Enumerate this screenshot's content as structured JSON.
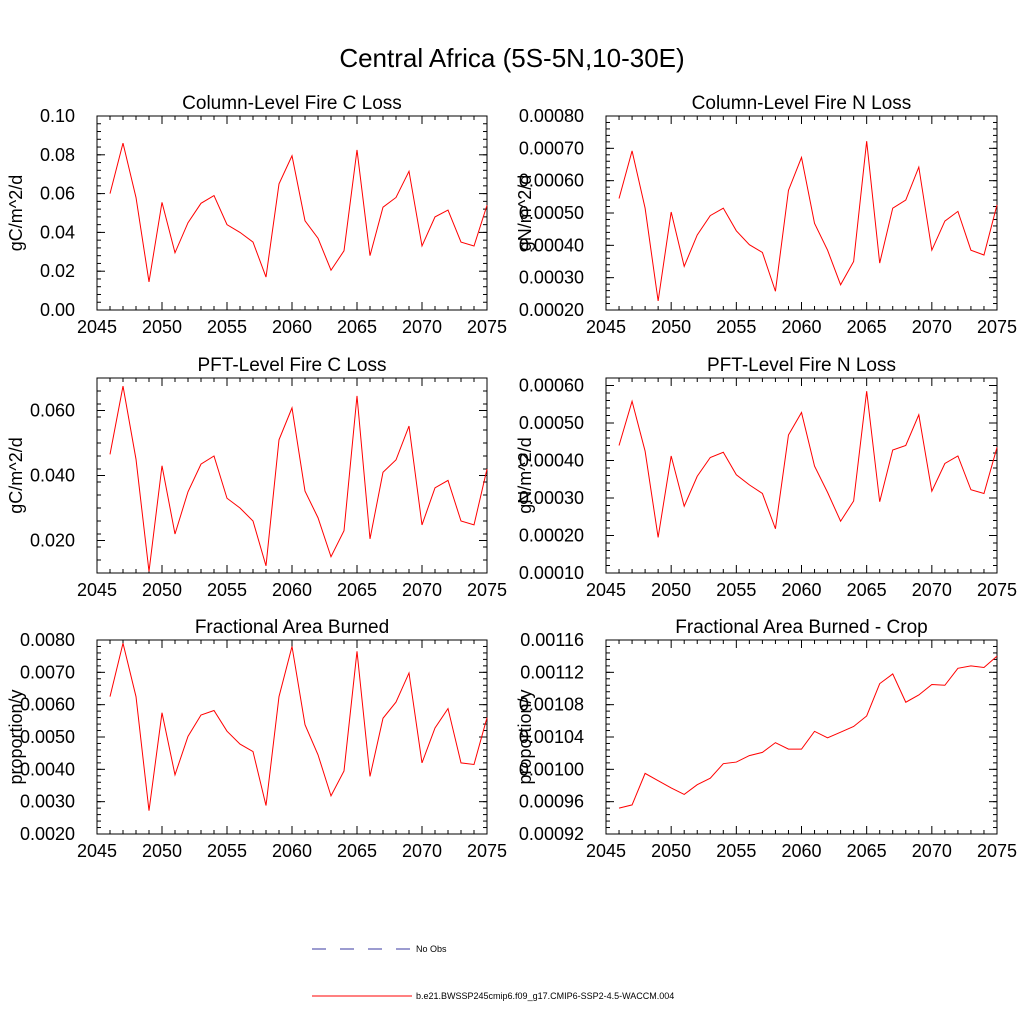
{
  "page": {
    "title": "Central Africa (5S-5N,10-30E)"
  },
  "legend": {
    "entries": [
      {
        "label": "No Obs",
        "color": "#3a3aa0",
        "style": "dashed"
      },
      {
        "label": "b.e21.BWSSP245cmip6.f09_g17.CMIP6-SSP2-4.5-WACCM.004",
        "color": "#ff0000",
        "style": "solid"
      }
    ]
  },
  "chart_data": [
    {
      "type": "line",
      "title": "Column-Level Fire C Loss",
      "ylabel": "gC/m^2/d",
      "xlim": [
        2045,
        2075
      ],
      "ylim": [
        0.0,
        0.1
      ],
      "xticks": [
        2045,
        2050,
        2055,
        2060,
        2065,
        2070,
        2075
      ],
      "yticks": [
        0.0,
        0.02,
        0.04,
        0.06,
        0.08,
        0.1
      ],
      "ytick_labels": [
        "0.00",
        "0.02",
        "0.04",
        "0.06",
        "0.08",
        "0.10"
      ],
      "series": [
        {
          "color": "#ff0000",
          "x": [
            2046,
            2047,
            2048,
            2049,
            2050,
            2051,
            2052,
            2053,
            2054,
            2055,
            2056,
            2057,
            2058,
            2059,
            2060,
            2061,
            2062,
            2063,
            2064,
            2065,
            2066,
            2067,
            2068,
            2069,
            2070,
            2071,
            2072,
            2073,
            2074,
            2075
          ],
          "y": [
            0.06,
            0.086,
            0.058,
            0.0145,
            0.0555,
            0.0295,
            0.045,
            0.055,
            0.059,
            0.044,
            0.04,
            0.035,
            0.017,
            0.065,
            0.0795,
            0.046,
            0.037,
            0.0205,
            0.0305,
            0.0825,
            0.028,
            0.053,
            0.058,
            0.0715,
            0.033,
            0.048,
            0.0515,
            0.035,
            0.033,
            0.054
          ]
        }
      ]
    },
    {
      "type": "line",
      "title": "Column-Level Fire N Loss",
      "ylabel": "gN/m^2/d",
      "xlim": [
        2045,
        2075
      ],
      "ylim": [
        0.0002,
        0.0008
      ],
      "xticks": [
        2045,
        2050,
        2055,
        2060,
        2065,
        2070,
        2075
      ],
      "yticks": [
        0.0002,
        0.0003,
        0.0004,
        0.0005,
        0.0006,
        0.0007,
        0.0008
      ],
      "ytick_labels": [
        "0.00020",
        "0.00030",
        "0.00040",
        "0.00050",
        "0.00060",
        "0.00070",
        "0.00080"
      ],
      "series": [
        {
          "color": "#ff0000",
          "x": [
            2046,
            2047,
            2048,
            2049,
            2050,
            2051,
            2052,
            2053,
            2054,
            2055,
            2056,
            2057,
            2058,
            2059,
            2060,
            2061,
            2062,
            2063,
            2064,
            2065,
            2066,
            2067,
            2068,
            2069,
            2070,
            2071,
            2072,
            2073,
            2074,
            2075
          ],
          "y": [
            0.000545,
            0.000692,
            0.000515,
            0.000228,
            0.000503,
            0.000335,
            0.000432,
            0.000492,
            0.000515,
            0.000445,
            0.000402,
            0.000378,
            0.000258,
            0.00057,
            0.000672,
            0.000468,
            0.000385,
            0.000278,
            0.00035,
            0.000722,
            0.000345,
            0.000515,
            0.00054,
            0.000642,
            0.000385,
            0.000475,
            0.000505,
            0.000385,
            0.00037,
            0.000525
          ]
        }
      ]
    },
    {
      "type": "line",
      "title": "PFT-Level Fire C Loss",
      "ylabel": "gC/m^2/d",
      "xlim": [
        2045,
        2075
      ],
      "ylim": [
        0.01,
        0.07
      ],
      "xticks": [
        2045,
        2050,
        2055,
        2060,
        2065,
        2070,
        2075
      ],
      "yticks": [
        0.02,
        0.04,
        0.06
      ],
      "ytick_labels": [
        "0.020",
        "0.040",
        "0.060"
      ],
      "series": [
        {
          "color": "#ff0000",
          "x": [
            2046,
            2047,
            2048,
            2049,
            2050,
            2051,
            2052,
            2053,
            2054,
            2055,
            2056,
            2057,
            2058,
            2059,
            2060,
            2061,
            2062,
            2063,
            2064,
            2065,
            2066,
            2067,
            2068,
            2069,
            2070,
            2071,
            2072,
            2073,
            2074,
            2075
          ],
          "y": [
            0.0465,
            0.0675,
            0.045,
            0.0105,
            0.043,
            0.022,
            0.035,
            0.0435,
            0.046,
            0.033,
            0.03,
            0.026,
            0.0122,
            0.051,
            0.0608,
            0.0352,
            0.027,
            0.015,
            0.023,
            0.0645,
            0.0205,
            0.041,
            0.0448,
            0.0552,
            0.0248,
            0.0362,
            0.0385,
            0.026,
            0.0248,
            0.042
          ]
        }
      ]
    },
    {
      "type": "line",
      "title": "PFT-Level Fire N Loss",
      "ylabel": "gN/m^2/d",
      "xlim": [
        2045,
        2075
      ],
      "ylim": [
        0.0001,
        0.00062
      ],
      "xticks": [
        2045,
        2050,
        2055,
        2060,
        2065,
        2070,
        2075
      ],
      "yticks": [
        0.0001,
        0.0002,
        0.0003,
        0.0004,
        0.0005,
        0.0006
      ],
      "ytick_labels": [
        "0.00010",
        "0.00020",
        "0.00030",
        "0.00040",
        "0.00050",
        "0.00060"
      ],
      "series": [
        {
          "color": "#ff0000",
          "x": [
            2046,
            2047,
            2048,
            2049,
            2050,
            2051,
            2052,
            2053,
            2054,
            2055,
            2056,
            2057,
            2058,
            2059,
            2060,
            2061,
            2062,
            2063,
            2064,
            2065,
            2066,
            2067,
            2068,
            2069,
            2070,
            2071,
            2072,
            2073,
            2074,
            2075
          ],
          "y": [
            0.00044,
            0.000558,
            0.000425,
            0.000195,
            0.000412,
            0.000278,
            0.000358,
            0.000408,
            0.000422,
            0.000362,
            0.000335,
            0.000312,
            0.000218,
            0.000468,
            0.000528,
            0.000385,
            0.000315,
            0.000238,
            0.000292,
            0.000585,
            0.00029,
            0.000428,
            0.00044,
            0.000522,
            0.000318,
            0.000392,
            0.000412,
            0.000322,
            0.000312,
            0.000435
          ]
        }
      ]
    },
    {
      "type": "line",
      "title": "Fractional Area Burned",
      "ylabel": "proportion/y",
      "xlim": [
        2045,
        2075
      ],
      "ylim": [
        0.002,
        0.008
      ],
      "xticks": [
        2045,
        2050,
        2055,
        2060,
        2065,
        2070,
        2075
      ],
      "yticks": [
        0.002,
        0.003,
        0.004,
        0.005,
        0.006,
        0.007,
        0.008
      ],
      "ytick_labels": [
        "0.0020",
        "0.0030",
        "0.0040",
        "0.0050",
        "0.0060",
        "0.0070",
        "0.0080"
      ],
      "series": [
        {
          "color": "#ff0000",
          "x": [
            2046,
            2047,
            2048,
            2049,
            2050,
            2051,
            2052,
            2053,
            2054,
            2055,
            2056,
            2057,
            2058,
            2059,
            2060,
            2061,
            2062,
            2063,
            2064,
            2065,
            2066,
            2067,
            2068,
            2069,
            2070,
            2071,
            2072,
            2073,
            2074,
            2075
          ],
          "y": [
            0.00625,
            0.0079,
            0.00625,
            0.00272,
            0.00575,
            0.00383,
            0.00502,
            0.00568,
            0.00582,
            0.00518,
            0.00478,
            0.00455,
            0.00288,
            0.00625,
            0.0078,
            0.00538,
            0.00445,
            0.00318,
            0.00395,
            0.00765,
            0.00378,
            0.00558,
            0.00608,
            0.00698,
            0.0042,
            0.00528,
            0.00588,
            0.0042,
            0.00415,
            0.0056
          ]
        }
      ]
    },
    {
      "type": "line",
      "title": "Fractional Area Burned - Crop",
      "ylabel": "proportion/y",
      "xlim": [
        2045,
        2075
      ],
      "ylim": [
        0.00092,
        0.00116
      ],
      "xticks": [
        2045,
        2050,
        2055,
        2060,
        2065,
        2070,
        2075
      ],
      "yticks": [
        0.00092,
        0.00096,
        0.001,
        0.00104,
        0.00108,
        0.00112,
        0.00116
      ],
      "ytick_labels": [
        "0.00092",
        "0.00096",
        "0.00100",
        "0.00104",
        "0.00108",
        "0.00112",
        "0.00116"
      ],
      "series": [
        {
          "color": "#ff0000",
          "x": [
            2046,
            2047,
            2048,
            2049,
            2050,
            2051,
            2052,
            2053,
            2054,
            2055,
            2056,
            2057,
            2058,
            2059,
            2060,
            2061,
            2062,
            2063,
            2064,
            2065,
            2066,
            2067,
            2068,
            2069,
            2070,
            2071,
            2072,
            2073,
            2074,
            2075
          ],
          "y": [
            0.000952,
            0.000956,
            0.000995,
            0.000986,
            0.000977,
            0.000969,
            0.000981,
            0.000989,
            0.001007,
            0.001009,
            0.001017,
            0.001021,
            0.001033,
            0.001025,
            0.001025,
            0.001047,
            0.001039,
            0.001046,
            0.001053,
            0.001066,
            0.001106,
            0.001118,
            0.001083,
            0.001092,
            0.001105,
            0.001104,
            0.001125,
            0.001128,
            0.001126,
            0.00114
          ]
        }
      ]
    }
  ]
}
